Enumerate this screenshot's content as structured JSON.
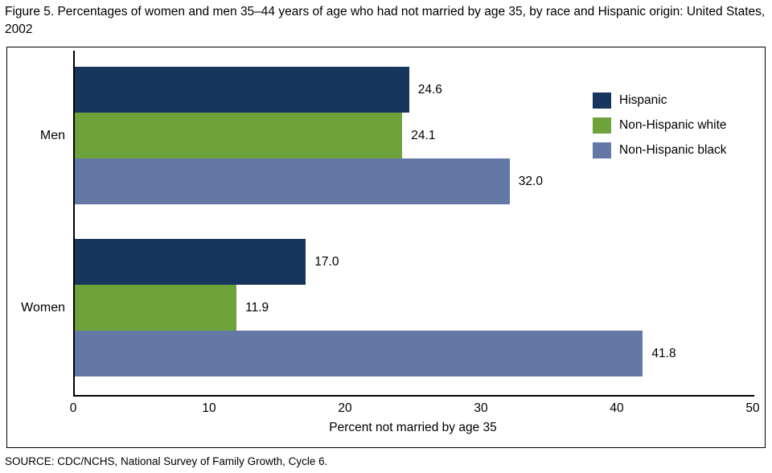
{
  "title": "Figure 5. Percentages of women and men 35–44 years of age who had not married by age 35, by race and Hispanic origin: United States, 2002",
  "source": "SOURCE: CDC/NCHS, National Survey of Family Growth, Cycle 6.",
  "chart_data": {
    "type": "bar",
    "orientation": "horizontal",
    "title": "Figure 5. Percentages of women and men 35–44 years of age who had not married by age 35, by race and Hispanic origin: United States, 2002",
    "categories": [
      "Men",
      "Women"
    ],
    "series": [
      {
        "name": "Hispanic",
        "color": "#17365d",
        "values": [
          24.6,
          17.0
        ],
        "labels": [
          "24.6",
          "17.0"
        ]
      },
      {
        "name": "Non-Hispanic white",
        "color": "#6ea33c",
        "values": [
          24.1,
          11.9
        ],
        "labels": [
          "24.1",
          "11.9"
        ]
      },
      {
        "name": "Non-Hispanic black",
        "color": "#6478a8",
        "values": [
          32.0,
          41.8
        ],
        "labels": [
          "32.0",
          "41.8"
        ]
      }
    ],
    "xlabel": "Percent not married by age 35",
    "ylabel": "",
    "xlim": [
      0,
      50
    ],
    "xticks": [
      0,
      10,
      20,
      30,
      40,
      50
    ],
    "grid": false,
    "legend_position": "top-right"
  }
}
